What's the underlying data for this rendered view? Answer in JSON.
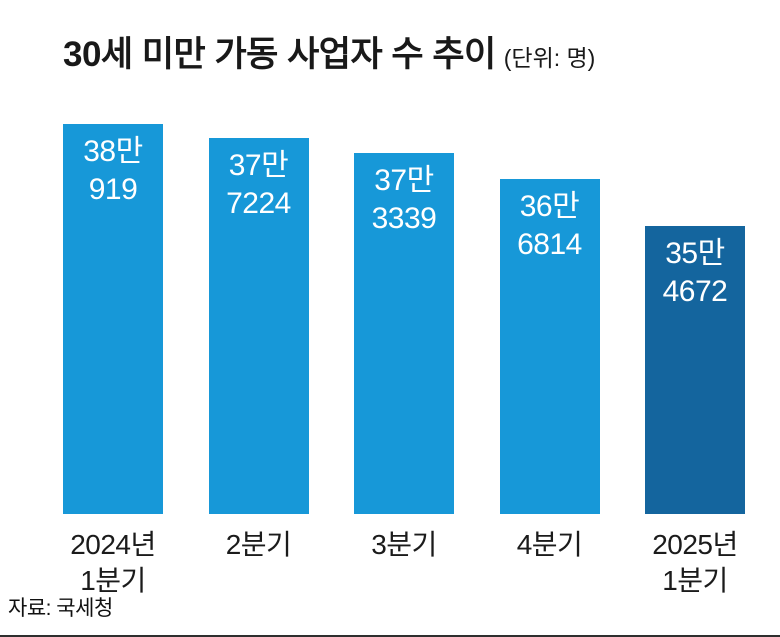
{
  "title": "30세 미만 가동 사업자 수 추이",
  "unit_label": "(단위: 명)",
  "source": "자료: 국세청",
  "colors": {
    "bar": "#1798d8",
    "bar_highlight": "#14659e",
    "text": "#191919",
    "rule": "#2e2e2e"
  },
  "chart_data": {
    "type": "bar",
    "title": "30세 미만 가동 사업자 수 추이",
    "unit": "명",
    "categories": [
      "2024년\n1분기",
      "2분기",
      "3분기",
      "4분기",
      "2025년\n1분기"
    ],
    "values": [
      380919,
      377224,
      373339,
      366814,
      354672
    ],
    "value_labels": [
      "38만\n919",
      "37만\n7224",
      "37만\n3339",
      "36만\n6814",
      "35만\n4672"
    ],
    "highlight_index": 4,
    "ylim": [
      280000,
      382000
    ],
    "grid": false,
    "legend": "none",
    "source": "자료: 국세청"
  }
}
